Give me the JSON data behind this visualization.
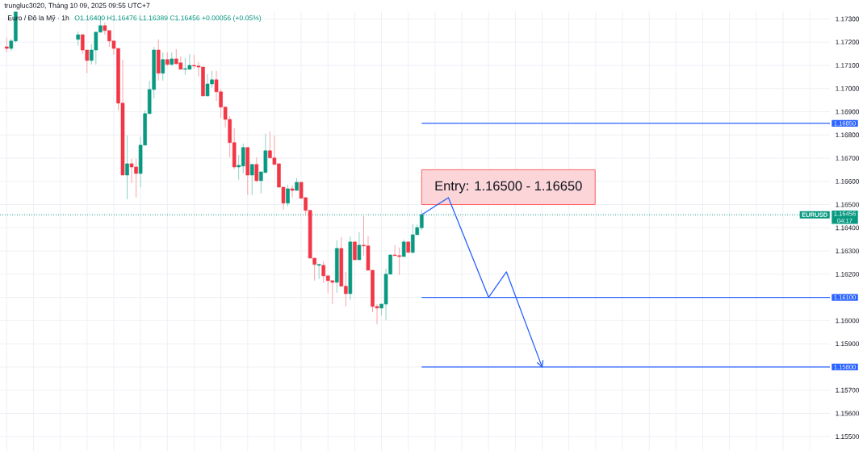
{
  "chart_data": {
    "type": "candlestick",
    "title": "trungluc3020, Tháng 10 09, 2025 09:55 UTC+7",
    "subtitle": "Euro / Đô la Mỹ · 1h",
    "categories": [
      null,
      null,
      null,
      null,
      null,
      null,
      null,
      null,
      null,
      null,
      null,
      null,
      null,
      null,
      null,
      null,
      null,
      null,
      null,
      null,
      null,
      null,
      null,
      null,
      null,
      null,
      null,
      null,
      null,
      null,
      null,
      null,
      null,
      null,
      null,
      null,
      null,
      null,
      null,
      null,
      null,
      null,
      null,
      null,
      null,
      null,
      null,
      null,
      null,
      null,
      null,
      null,
      null,
      null,
      null,
      null,
      null,
      null,
      null,
      null,
      null,
      null,
      null,
      null,
      null,
      null,
      null,
      null,
      null,
      null,
      null,
      null,
      null,
      null,
      null,
      null,
      null,
      null,
      null,
      null,
      null,
      null,
      null,
      null,
      null,
      null,
      null,
      null,
      null,
      null,
      null,
      null,
      null,
      null,
      null,
      null,
      null,
      null,
      null,
      null,
      null,
      null,
      null,
      null,
      null,
      null,
      null,
      null,
      null,
      null,
      null,
      null,
      null,
      null,
      null,
      null,
      null,
      null,
      null,
      null,
      null,
      null,
      null,
      null,
      null,
      null,
      null,
      null,
      null,
      null,
      null,
      null,
      null,
      null,
      null,
      null,
      null,
      null,
      null,
      null,
      null,
      null,
      null,
      null,
      null,
      null,
      null,
      null,
      null,
      null,
      null,
      null,
      null,
      null,
      null,
      null,
      null,
      null,
      null,
      null,
      null,
      null,
      null,
      null,
      null,
      null,
      null,
      null,
      null,
      null,
      null,
      null,
      null,
      null,
      null,
      null,
      null,
      null,
      null,
      null,
      null,
      null,
      null,
      null,
      null,
      null
    ],
    "ohlc": [
      null,
      [
        1.1718,
        1.17219,
        1.17156,
        1.17173
      ],
      [
        1.17173,
        1.17215,
        1.17163,
        1.17205
      ],
      [
        1.17205,
        1.1733,
        1.17198,
        1.1733
      ],
      null,
      null,
      null,
      null,
      null,
      null,
      null,
      null,
      null,
      null,
      null,
      null,
      null,
      [
        1.17212,
        1.17246,
        1.17184,
        1.17232
      ],
      [
        1.17232,
        1.17235,
        1.17149,
        1.17166
      ],
      [
        1.17166,
        1.17166,
        1.17066,
        1.17121
      ],
      [
        1.17121,
        1.17191,
        1.17104,
        1.17166
      ],
      [
        1.17166,
        1.17243,
        1.17104,
        1.17243
      ],
      [
        1.17243,
        1.17312,
        1.17243,
        1.17271
      ],
      [
        1.17271,
        1.17285,
        1.17232,
        1.1725
      ],
      [
        1.1725,
        1.1725,
        1.1718,
        1.17205
      ],
      [
        1.17205,
        1.17205,
        1.17146,
        1.17173
      ],
      [
        1.17173,
        1.17173,
        1.16906,
        1.16937
      ],
      [
        1.16937,
        1.17125,
        1.16627,
        1.16627
      ],
      [
        1.16627,
        1.16798,
        1.16523,
        1.16676
      ],
      [
        1.16676,
        1.16697,
        1.16593,
        1.16662
      ],
      [
        1.16662,
        1.16697,
        1.1653,
        1.16634
      ],
      [
        1.16634,
        1.16791,
        1.16575,
        1.16756
      ],
      [
        1.16756,
        1.16906,
        1.16756,
        1.16892
      ],
      [
        1.16892,
        1.17034,
        1.16892,
        1.16996
      ],
      [
        1.16996,
        1.1718,
        1.16958,
        1.17166
      ],
      [
        1.17166,
        1.17212,
        1.17034,
        1.17066
      ],
      [
        1.17066,
        1.17156,
        1.17034,
        1.17125
      ],
      [
        1.17125,
        1.17156,
        1.17097,
        1.17104
      ],
      [
        1.17104,
        1.17156,
        1.17097,
        1.17128
      ],
      [
        1.17128,
        1.1717,
        1.17104,
        1.17107
      ],
      [
        1.17111,
        1.17139,
        1.17083,
        1.17083
      ],
      [
        1.17083,
        1.17132,
        1.17059,
        1.17086
      ],
      [
        1.17083,
        1.17149,
        1.17083,
        1.171
      ],
      [
        1.171,
        1.17146,
        1.17086,
        1.17097
      ],
      [
        1.17097,
        1.17115,
        1.17052,
        1.17093
      ],
      [
        1.17093,
        1.17093,
        1.16968,
        1.16968
      ],
      [
        1.16968,
        1.17062,
        1.16968,
        1.1702
      ],
      [
        1.1702,
        1.17076,
        1.17003,
        1.17038
      ],
      [
        1.17038,
        1.17076,
        1.16947,
        1.16986
      ],
      [
        1.16986,
        1.16999,
        1.16874,
        1.1692
      ],
      [
        1.1692,
        1.1692,
        1.16833,
        1.16867
      ],
      [
        1.16867,
        1.16881,
        1.16704,
        1.16767
      ],
      [
        1.16767,
        1.16829,
        1.16652,
        1.16662
      ],
      [
        1.16662,
        1.16714,
        1.16607,
        1.16669
      ],
      [
        1.16666,
        1.16763,
        1.16634,
        1.16746
      ],
      [
        1.16746,
        1.16746,
        1.16541,
        1.16627
      ],
      [
        1.16627,
        1.16673,
        1.16541,
        1.16673
      ],
      [
        1.16673,
        1.16704,
        1.16596,
        1.16603
      ],
      [
        1.16603,
        1.16641,
        1.16548,
        1.16641
      ],
      [
        1.16638,
        1.16805,
        1.16638,
        1.16732
      ],
      [
        1.16732,
        1.16815,
        1.16701,
        1.16701
      ],
      [
        1.16701,
        1.16798,
        1.16673,
        1.16673
      ],
      [
        1.16676,
        1.16676,
        1.16575,
        1.16575
      ],
      [
        1.16575,
        1.16575,
        1.16478,
        1.16506
      ],
      [
        1.16506,
        1.16586,
        1.16492,
        1.16568
      ],
      [
        1.16568,
        1.16582,
        1.1653,
        1.16561
      ],
      [
        1.16561,
        1.16614,
        1.16561,
        1.16596
      ],
      [
        1.16596,
        1.16596,
        1.16527,
        1.16527
      ],
      [
        1.1653,
        1.1653,
        1.16457,
        1.16475
      ],
      [
        1.16475,
        1.16475,
        1.16269,
        1.16269
      ],
      [
        1.16269,
        1.16269,
        1.16172,
        1.16242
      ],
      [
        1.16238,
        1.16245,
        1.16179,
        1.16242
      ],
      [
        1.16238,
        1.16256,
        1.16162,
        1.16193
      ],
      [
        1.16193,
        1.16193,
        1.1612,
        1.16172
      ],
      [
        1.16172,
        1.16172,
        1.16071,
        1.16165
      ],
      [
        1.16165,
        1.16346,
        1.1612,
        1.16311
      ],
      [
        1.16311,
        1.1636,
        1.16148,
        1.16148
      ],
      [
        1.16148,
        1.1621,
        1.16061,
        1.16116
      ],
      [
        1.16116,
        1.16363,
        1.16089,
        1.16339
      ],
      [
        1.16339,
        1.16339,
        1.16262,
        1.16262
      ],
      [
        1.16262,
        1.16381,
        1.16262,
        1.16325
      ],
      [
        1.16325,
        1.1645,
        1.1628,
        1.16322
      ],
      [
        1.16322,
        1.16363,
        1.16217,
        1.16217
      ],
      [
        1.16217,
        1.16217,
        1.16036,
        1.16061
      ],
      [
        1.16061,
        1.16071,
        1.15984,
        1.16054
      ],
      [
        1.16054,
        1.16071,
        1.16022,
        1.16071
      ],
      [
        1.16071,
        1.16224,
        1.16002,
        1.162
      ],
      [
        1.162,
        1.16283,
        1.162,
        1.16283
      ],
      [
        1.16283,
        1.16325,
        1.1628,
        1.1628
      ],
      [
        1.1628,
        1.16315,
        1.16196,
        1.16276
      ],
      [
        1.16276,
        1.16349,
        1.16276,
        1.16339
      ],
      [
        1.16339,
        1.16339,
        1.16294,
        1.16294
      ],
      [
        1.16294,
        1.16415,
        1.16287,
        1.1637
      ],
      [
        1.1637,
        1.16415,
        1.1637,
        1.16401
      ],
      [
        1.164,
        1.16476,
        1.16389,
        1.16456
      ],
      null,
      null,
      null,
      null,
      null,
      null,
      null,
      null,
      null,
      null,
      null,
      null,
      null,
      null,
      null,
      null,
      null,
      null,
      null,
      null,
      null,
      null,
      null,
      null,
      null,
      null,
      null,
      null,
      null,
      null,
      null,
      null,
      null,
      null,
      null,
      null,
      null,
      null,
      null,
      null,
      null,
      null,
      null,
      null,
      null,
      null,
      null,
      null,
      null,
      null,
      null,
      null,
      null,
      null,
      null,
      null,
      null,
      null,
      null,
      null,
      null,
      null,
      null,
      null,
      null,
      null,
      null,
      null,
      null,
      null,
      null,
      null,
      null,
      null,
      null,
      null,
      null,
      null,
      null,
      null,
      null,
      null,
      null,
      null,
      null,
      null,
      null,
      null,
      null,
      null,
      null
    ],
    "colors": [
      null,
      "#f23645",
      "#089981",
      "#089981",
      null,
      null,
      null,
      null,
      null,
      null,
      null,
      null,
      null,
      null,
      null,
      null,
      null,
      "#089981",
      "#f23645",
      "#f23645",
      "#089981",
      "#089981",
      "#089981",
      "#f23645",
      "#f23645",
      "#f23645",
      "#f23645",
      "#f23645",
      "#089981",
      "#f23645",
      "#f23645",
      "#089981",
      "#089981",
      "#089981",
      "#089981",
      "#f23645",
      "#089981",
      "#f23645",
      "#089981",
      "#f23645",
      "#f23645",
      "#089981",
      "#089981",
      "#f23645",
      "#f23645",
      "#f23645",
      "#089981",
      "#089981",
      "#f23645",
      "#f23645",
      "#f23645",
      "#f23645",
      "#f23645",
      "#089981",
      "#089981",
      "#f23645",
      "#089981",
      "#f23645",
      "#089981",
      "#089981",
      "#f23645",
      "#f23645",
      "#f23645",
      "#f23645",
      "#089981",
      "#f23645",
      "#089981",
      "#f23645",
      "#f23645",
      "#f23645",
      "#f23645",
      "#089981",
      "#f23645",
      "#f23645",
      "#f23645",
      "#089981",
      "#f23645",
      "#f23645",
      "#089981",
      "#f23645",
      "#089981",
      "#f23645",
      "#f23645",
      "#f23645",
      "#f23645",
      "#089981",
      "#089981",
      "#089981",
      "#f23645",
      "#f23645",
      "#089981",
      "#f23645",
      "#089981",
      "#089981",
      "#089981",
      null,
      null,
      null,
      null,
      null,
      null,
      null,
      null,
      null,
      null,
      null,
      null,
      null,
      null,
      null,
      null,
      null,
      null,
      null,
      null,
      null,
      null,
      null,
      null,
      null,
      null,
      null,
      null,
      null,
      null,
      null,
      null,
      null,
      null,
      null,
      null,
      null,
      null,
      null,
      null,
      null,
      null,
      null,
      null,
      null,
      null,
      null,
      null,
      null,
      null,
      null,
      null,
      null,
      null,
      null,
      null,
      null,
      null,
      null,
      null,
      null,
      null,
      null,
      null,
      null,
      null,
      null,
      null,
      null,
      null,
      null,
      null,
      null,
      null,
      null,
      null,
      null,
      null,
      null,
      null,
      null,
      null,
      null,
      null,
      null,
      null,
      null,
      null,
      null,
      null,
      null
    ],
    "series": [
      {
        "type": "line",
        "color": "#2962ff",
        "values": [
          null,
          null,
          null,
          null,
          null,
          null,
          null,
          null,
          null,
          null,
          null,
          null,
          null,
          null,
          null,
          null,
          null,
          null,
          null,
          null,
          null,
          null,
          null,
          null,
          null,
          null,
          null,
          null,
          null,
          null,
          null,
          null,
          null,
          null,
          null,
          null,
          null,
          null,
          null,
          null,
          null,
          null,
          null,
          null,
          null,
          null,
          null,
          null,
          null,
          null,
          null,
          null,
          null,
          null,
          null,
          null,
          null,
          null,
          null,
          null,
          null,
          null,
          null,
          null,
          null,
          null,
          null,
          null,
          null,
          null,
          null,
          null,
          null,
          null,
          null,
          null,
          null,
          null,
          null,
          null,
          null,
          null,
          null,
          null,
          null,
          null,
          null,
          null,
          null,
          null,
          null,
          null,
          null,
          null,
          1.16456,
          null,
          null,
          null,
          null,
          null,
          1.1653,
          null,
          null,
          null,
          null,
          null,
          null,
          null,
          null,
          1.161,
          null,
          null,
          null,
          1.1621,
          null,
          null,
          null,
          null,
          null,
          null,
          null,
          1.158,
          null,
          null,
          null,
          null,
          null,
          null,
          null,
          null,
          null,
          null,
          null,
          null,
          null,
          null,
          null,
          null,
          null,
          null,
          null,
          null,
          null,
          null,
          null,
          null,
          null,
          null,
          null,
          null,
          null,
          null,
          null,
          null,
          null,
          null,
          null,
          null,
          null,
          null,
          null,
          null,
          null,
          null,
          null,
          null,
          null,
          null,
          null,
          null,
          null,
          null,
          null,
          null,
          null,
          null,
          null,
          null,
          null,
          null,
          null,
          null,
          null,
          null,
          null,
          null
        ]
      }
    ],
    "ylim": [
      1.15438,
      1.17333
    ],
    "yticks": [
      {
        "value": 1.155,
        "label": "1.15500"
      },
      {
        "value": 1.156,
        "label": "1.15600"
      },
      {
        "value": 1.157,
        "label": "1.15700"
      },
      {
        "value": 1.158,
        "label": null
      },
      {
        "value": 1.159,
        "label": "1.15900"
      },
      {
        "value": 1.16,
        "label": "1.16000"
      },
      {
        "value": 1.161,
        "label": null
      },
      {
        "value": 1.162,
        "label": "1.16200"
      },
      {
        "value": 1.163,
        "label": "1.16300"
      },
      {
        "value": 1.164,
        "label": "1.16400"
      },
      {
        "value": 1.165,
        "label": "1.16500"
      },
      {
        "value": 1.166,
        "label": "1.16600"
      },
      {
        "value": 1.167,
        "label": "1.16700"
      },
      {
        "value": 1.168,
        "label": "1.16800"
      },
      {
        "value": 1.169,
        "label": "1.16900"
      },
      {
        "value": 1.17,
        "label": "1.17000"
      },
      {
        "value": 1.171,
        "label": "1.17100"
      },
      {
        "value": 1.172,
        "label": "1.17200"
      },
      {
        "value": 1.173,
        "label": "1.17300"
      }
    ],
    "grid": true,
    "tick_labels": "y",
    "ref_lines": [
      {
        "axis": "y",
        "value": 1.1685,
        "label": "1.16850",
        "color": "#2962ff"
      },
      {
        "axis": "y",
        "value": 1.161,
        "label": "1.16100",
        "color": "#2962ff"
      },
      {
        "axis": "y",
        "value": 1.158,
        "label": "1.15800",
        "color": "#2962ff"
      },
      {
        "axis": "y",
        "value": 1.16456,
        "label": "1.16456",
        "color": "#089981",
        "line_style": "dotted"
      }
    ],
    "bands": [
      {
        "axis": "y",
        "from": 1.165,
        "to": 1.1665,
        "label": "Entry: 1.16500 - 1.16650",
        "color": "#fbd5d8"
      }
    ],
    "annotations": [
      "O1.16400 H1.16476 L1.16389 C1.16456 +0.00056 (+0.05%)",
      {
        "text": "EURUSD",
        "y": 1.16456
      },
      "04:17"
    ]
  }
}
